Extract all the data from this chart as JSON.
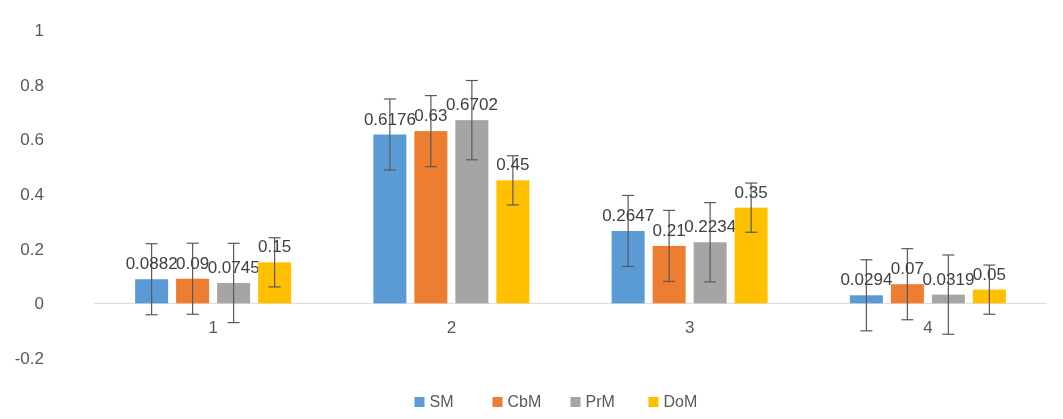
{
  "chart_data": {
    "type": "bar",
    "categories": [
      "1",
      "2",
      "3",
      "4"
    ],
    "series": [
      {
        "name": "SM",
        "color": "#5b9bd5",
        "values": [
          0.0882,
          0.6176,
          0.2647,
          0.0294
        ],
        "errors": [
          0.13,
          0.13,
          0.13,
          0.13
        ]
      },
      {
        "name": "CbM",
        "color": "#ed7d31",
        "values": [
          0.09,
          0.63,
          0.21,
          0.07
        ],
        "errors": [
          0.13,
          0.13,
          0.13,
          0.13
        ]
      },
      {
        "name": "PrM",
        "color": "#a5a5a5",
        "values": [
          0.0745,
          0.6702,
          0.2234,
          0.0319
        ],
        "errors": [
          0.145,
          0.145,
          0.145,
          0.145
        ]
      },
      {
        "name": "DoM",
        "color": "#ffc000",
        "values": [
          0.15,
          0.45,
          0.35,
          0.05
        ],
        "errors": [
          0.09,
          0.09,
          0.09,
          0.09
        ]
      }
    ],
    "ylim": [
      -0.2,
      1
    ],
    "yticks": [
      -0.2,
      0,
      0.2,
      0.4,
      0.6,
      0.8,
      1
    ],
    "data_labels": true,
    "legend": "bottom",
    "grid": false
  }
}
